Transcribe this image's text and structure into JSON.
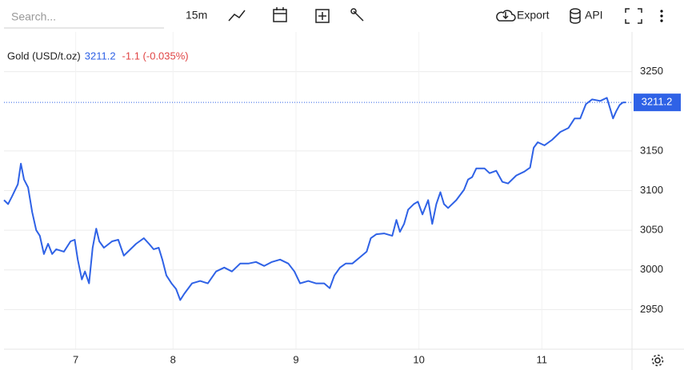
{
  "toolbar": {
    "search_placeholder": "Search...",
    "interval": "15m",
    "export": "Export",
    "api": "API"
  },
  "chart_data": {
    "type": "line",
    "series": [
      {
        "name": "Gold (USD/t.oz)",
        "color": "#2f62e6",
        "x": [
          0,
          0.8,
          1.6,
          2.7,
          3.3,
          3.9,
          4.7,
          5.5,
          6.3,
          7,
          7.8,
          8.6,
          9.4,
          10.2,
          11.7,
          13,
          13.8,
          14.4,
          15.2,
          15.8,
          16.6,
          17.3,
          18,
          18.6,
          19.5,
          21.1,
          22.3,
          23.4,
          24.2,
          25.8,
          27.3,
          28.3,
          29.2,
          30.2,
          30.9,
          31.7,
          32.7,
          33.6,
          34.4,
          35.2,
          36.7,
          38.3,
          39.8,
          41.4,
          43,
          44.5,
          46.1,
          47.7,
          49.2,
          50.8,
          52.3,
          53.9,
          55.5,
          56.7,
          57.8,
          59.4,
          60.9,
          62.5,
          63.6,
          64.5,
          65.6,
          66.7,
          68,
          69.5,
          70.8,
          71.6,
          72.7,
          74.2,
          75.8,
          76.6,
          77.3,
          78.1,
          78.9,
          80,
          80.8,
          81.7,
          82.8,
          83.6,
          84.4,
          85.2,
          85.9,
          86.7,
          88.3,
          89.8,
          90.6,
          91.4,
          92.2,
          93.8,
          94.8,
          96.1,
          97.3,
          98.4,
          100,
          101.6,
          102.7,
          103.4,
          104.2,
          105.5,
          107,
          108.6,
          110.2,
          111.4,
          112.5,
          113.6,
          114.8,
          116.4,
          117.7,
          118.3,
          118.9,
          119.5,
          120.2,
          120.8,
          121.4
        ],
        "values": [
          3088,
          3083,
          3093,
          3108,
          3134,
          3114,
          3104,
          3073,
          3050,
          3043,
          3020,
          3033,
          3020,
          3026,
          3023,
          3036,
          3038,
          3013,
          2988,
          2998,
          2983,
          3028,
          3052,
          3036,
          3028,
          3036,
          3038,
          3018,
          3023,
          3033,
          3040,
          3033,
          3026,
          3028,
          3013,
          2993,
          2983,
          2976,
          2962,
          2970,
          2983,
          2986,
          2983,
          2998,
          3003,
          2998,
          3008,
          3008,
          3010,
          3005,
          3010,
          3013,
          3008,
          2998,
          2983,
          2986,
          2983,
          2983,
          2977,
          2993,
          3003,
          3008,
          3008,
          3016,
          3023,
          3040,
          3045,
          3046,
          3043,
          3063,
          3048,
          3058,
          3076,
          3083,
          3086,
          3070,
          3088,
          3058,
          3083,
          3098,
          3083,
          3078,
          3088,
          3101,
          3114,
          3117,
          3128,
          3128,
          3122,
          3125,
          3111,
          3109,
          3119,
          3124,
          3129,
          3154,
          3161,
          3157,
          3164,
          3174,
          3179,
          3191,
          3191,
          3209,
          3215,
          3213,
          3217,
          3204,
          3191,
          3200,
          3208,
          3211,
          3211.2
        ]
      }
    ],
    "last_value": 3211.2,
    "change_label": "-1.1 (-0.035%)",
    "xlim": [
      0,
      122.6
    ],
    "xticks": [
      {
        "value": 14,
        "label": "7"
      },
      {
        "value": 33,
        "label": "8"
      },
      {
        "value": 57,
        "label": "9"
      },
      {
        "value": 81,
        "label": "10"
      },
      {
        "value": 105,
        "label": "11"
      }
    ],
    "ylim": [
      2900,
      3300
    ],
    "yticks": [
      2950,
      3000,
      3050,
      3100,
      3150,
      3250
    ],
    "grid": true
  }
}
